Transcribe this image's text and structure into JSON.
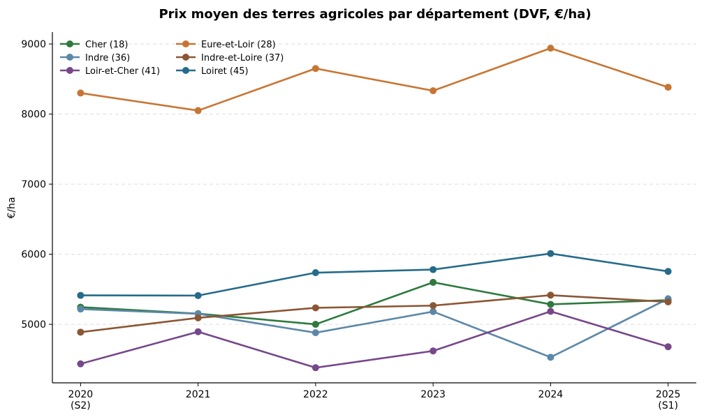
{
  "chart_data": {
    "type": "line",
    "title": "Prix moyen des terres agricoles par département (DVF, €/ha)",
    "xlabel": "",
    "ylabel": "€/ha",
    "x": [
      2020,
      2021,
      2022,
      2023,
      2024,
      2025
    ],
    "x_tick_labels": [
      "2020\n(S2)",
      "2021",
      "2022",
      "2023",
      "2024",
      "2025\n(S1)"
    ],
    "xlim": [
      2019.76,
      2025.24
    ],
    "ylim": [
      4165,
      9170
    ],
    "y_ticks": [
      5000,
      6000,
      7000,
      8000,
      9000
    ],
    "grid": "y-dashed",
    "legend_placement": "top-left",
    "series": [
      {
        "name": "Cher (18)",
        "color": "#2e7a3f",
        "values": [
          5245,
          5152,
          5000,
          5599,
          5285,
          5345
        ]
      },
      {
        "name": "Eure-et-Loir (28)",
        "color": "#c87533",
        "values": [
          8300,
          8050,
          8650,
          8333,
          8940,
          8383
        ]
      },
      {
        "name": "Indre (36)",
        "color": "#5b88a8",
        "values": [
          5218,
          5150,
          4880,
          5182,
          4530,
          5365
        ]
      },
      {
        "name": "Indre-et-Loire (37)",
        "color": "#8b5634",
        "values": [
          4888,
          5092,
          5235,
          5267,
          5416,
          5320
        ]
      },
      {
        "name": "Loir-et-Cher (41)",
        "color": "#76488a",
        "values": [
          4436,
          4894,
          4381,
          4620,
          5185,
          4680
        ]
      },
      {
        "name": "Loiret (45)",
        "color": "#256b8a",
        "values": [
          5413,
          5410,
          5737,
          5781,
          6010,
          5755
        ]
      }
    ]
  }
}
